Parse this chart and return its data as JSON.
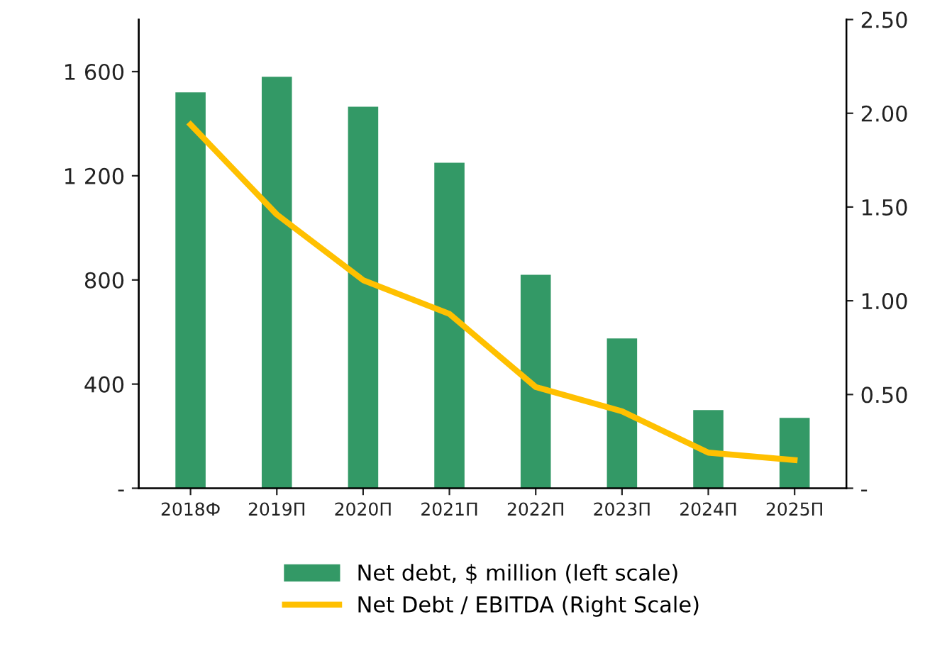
{
  "chart_data": {
    "type": "bar",
    "categories": [
      "2018Ф",
      "2019П",
      "2020П",
      "2021П",
      "2022П",
      "2023П",
      "2024П",
      "2025П"
    ],
    "series": [
      {
        "name": "Net debt, $ million (left scale)",
        "color": "#339966",
        "values": [
          1520,
          1580,
          1465,
          1250,
          820,
          575,
          300,
          270
        ]
      },
      {
        "name": "Net Debt / EBITDA (Right Scale)",
        "type": "line",
        "axis": "y2",
        "color": "#ffc000",
        "values": [
          1.94,
          1.46,
          1.11,
          0.93,
          0.54,
          0.41,
          0.19,
          0.15
        ]
      }
    ],
    "ylim": [
      0,
      1800
    ],
    "yticks": [
      {
        "value": 0,
        "label": "-"
      },
      400,
      800,
      {
        "value": 1200,
        "label": "1 200"
      },
      {
        "value": 1600,
        "label": "1 600"
      }
    ],
    "y2lim": [
      0,
      2.5
    ],
    "y2ticks": [
      {
        "value": 0,
        "label": "-"
      },
      {
        "value": 0.5,
        "label": "0.50"
      },
      {
        "value": 1.0,
        "label": "1.00"
      },
      {
        "value": 1.5,
        "label": "1.50"
      },
      {
        "value": 2.0,
        "label": "2.00"
      },
      {
        "value": 2.5,
        "label": "2.50"
      }
    ],
    "grid": false,
    "legend": "bottom",
    "marker": "none",
    "line_style": "solid"
  }
}
